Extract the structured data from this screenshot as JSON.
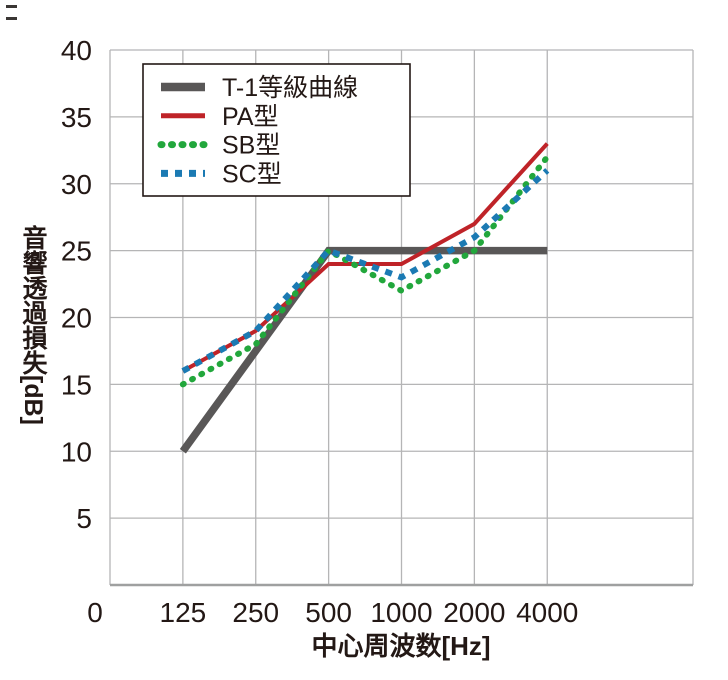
{
  "figure": {
    "background": "#ffffff"
  },
  "chart_data": {
    "type": "line",
    "title": "",
    "xlabel": "中心周波数[Hz]",
    "ylabel": "音響透過損失[dB]",
    "x_origin_label": "0",
    "categories": [
      "125",
      "250",
      "500",
      "1000",
      "2000",
      "4000"
    ],
    "x_scale": "log-octave",
    "y_ticks": [
      40,
      35,
      30,
      25,
      20,
      15,
      10,
      5
    ],
    "ylim": [
      0,
      40
    ],
    "grid": true,
    "grid_color": "#b5b5b6",
    "axis_color": "#9fa0a0",
    "text_color": "#231815",
    "legend_position": "top-left",
    "series": [
      {
        "name": "T-1等級曲線",
        "color": "#595757",
        "style": "solid",
        "stroke_width": 7.5,
        "values": [
          10,
          17.5,
          25,
          25,
          25,
          25
        ]
      },
      {
        "name": "PA型",
        "color": "#bf2328",
        "style": "solid",
        "stroke_width": 4,
        "values": [
          16,
          19,
          24,
          24,
          27,
          33
        ]
      },
      {
        "name": "SB型",
        "color": "#22a73c",
        "style": "dotted",
        "stroke_width": 6,
        "values": [
          15,
          18,
          25,
          22,
          25,
          32
        ]
      },
      {
        "name": "SC型",
        "color": "#1b7ab3",
        "style": "dashed",
        "stroke_width": 6,
        "values": [
          16,
          19,
          25,
          23,
          26,
          31
        ]
      }
    ]
  }
}
